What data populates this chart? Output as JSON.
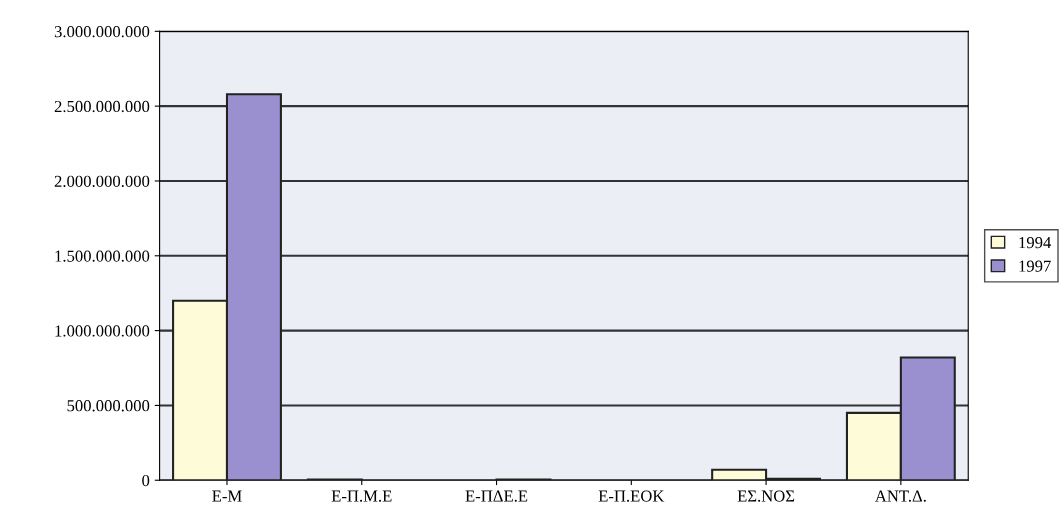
{
  "chart_data": {
    "type": "bar",
    "categories": [
      "Ε-Μ",
      "Ε-Π.Μ.Ε",
      "Ε-ΠΔΕ.Ε",
      "Ε-Π.ΕΟΚ",
      "ΕΣ.ΝΟΣ",
      "ΑΝΤ.Δ."
    ],
    "series": [
      {
        "name": "1994",
        "color": "#fdfbd8",
        "values": [
          1200000000,
          5000000,
          null,
          null,
          70000000,
          450000000
        ]
      },
      {
        "name": "1997",
        "color": "#9a90d0",
        "values": [
          2580000000,
          null,
          5000000,
          null,
          10000000,
          820000000
        ]
      }
    ],
    "ylim": [
      0,
      3000000000
    ],
    "yticks": [
      {
        "value": 0,
        "label": "0"
      },
      {
        "value": 500000000,
        "label": "500.000.000"
      },
      {
        "value": 1000000000,
        "label": "1.000.000.000"
      },
      {
        "value": 1500000000,
        "label": "1.500.000.000"
      },
      {
        "value": 2000000000,
        "label": "2.000.000.000"
      },
      {
        "value": 2500000000,
        "label": "2.500.000.000"
      },
      {
        "value": 3000000000,
        "label": "3.000.000.000"
      }
    ],
    "grid": "y",
    "legend": "right"
  }
}
